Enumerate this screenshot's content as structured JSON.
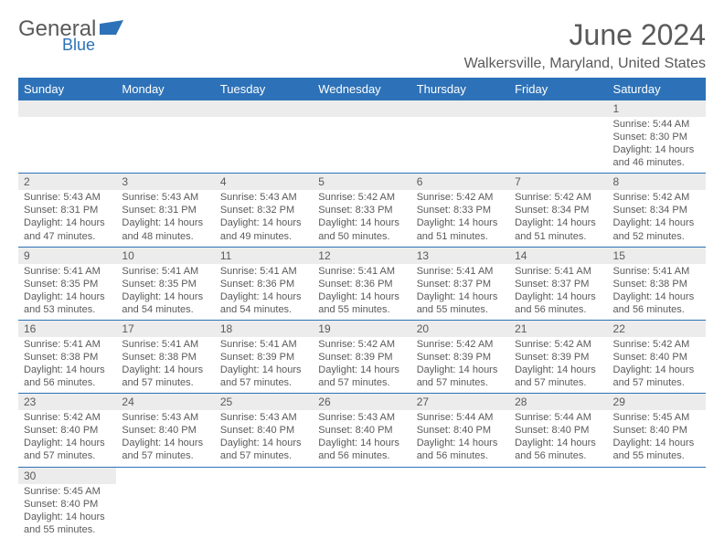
{
  "brand": {
    "textA": "General",
    "textB": "Blue",
    "logo_color": "#2d72b8",
    "text_color": "#5a5a5a"
  },
  "title": {
    "month": "June 2024",
    "location": "Walkersville, Maryland, United States"
  },
  "colors": {
    "header_bg": "#2d72b8",
    "row_stripe": "#ececec",
    "rule": "#2d72b8",
    "text": "#5a5a5a"
  },
  "daysOfWeek": [
    "Sunday",
    "Monday",
    "Tuesday",
    "Wednesday",
    "Thursday",
    "Friday",
    "Saturday"
  ],
  "weeks": [
    [
      {
        "n": "",
        "lines": []
      },
      {
        "n": "",
        "lines": []
      },
      {
        "n": "",
        "lines": []
      },
      {
        "n": "",
        "lines": []
      },
      {
        "n": "",
        "lines": []
      },
      {
        "n": "",
        "lines": []
      },
      {
        "n": "1",
        "lines": [
          "Sunrise: 5:44 AM",
          "Sunset: 8:30 PM",
          "Daylight: 14 hours",
          "and 46 minutes."
        ]
      }
    ],
    [
      {
        "n": "2",
        "lines": [
          "Sunrise: 5:43 AM",
          "Sunset: 8:31 PM",
          "Daylight: 14 hours",
          "and 47 minutes."
        ]
      },
      {
        "n": "3",
        "lines": [
          "Sunrise: 5:43 AM",
          "Sunset: 8:31 PM",
          "Daylight: 14 hours",
          "and 48 minutes."
        ]
      },
      {
        "n": "4",
        "lines": [
          "Sunrise: 5:43 AM",
          "Sunset: 8:32 PM",
          "Daylight: 14 hours",
          "and 49 minutes."
        ]
      },
      {
        "n": "5",
        "lines": [
          "Sunrise: 5:42 AM",
          "Sunset: 8:33 PM",
          "Daylight: 14 hours",
          "and 50 minutes."
        ]
      },
      {
        "n": "6",
        "lines": [
          "Sunrise: 5:42 AM",
          "Sunset: 8:33 PM",
          "Daylight: 14 hours",
          "and 51 minutes."
        ]
      },
      {
        "n": "7",
        "lines": [
          "Sunrise: 5:42 AM",
          "Sunset: 8:34 PM",
          "Daylight: 14 hours",
          "and 51 minutes."
        ]
      },
      {
        "n": "8",
        "lines": [
          "Sunrise: 5:42 AM",
          "Sunset: 8:34 PM",
          "Daylight: 14 hours",
          "and 52 minutes."
        ]
      }
    ],
    [
      {
        "n": "9",
        "lines": [
          "Sunrise: 5:41 AM",
          "Sunset: 8:35 PM",
          "Daylight: 14 hours",
          "and 53 minutes."
        ]
      },
      {
        "n": "10",
        "lines": [
          "Sunrise: 5:41 AM",
          "Sunset: 8:35 PM",
          "Daylight: 14 hours",
          "and 54 minutes."
        ]
      },
      {
        "n": "11",
        "lines": [
          "Sunrise: 5:41 AM",
          "Sunset: 8:36 PM",
          "Daylight: 14 hours",
          "and 54 minutes."
        ]
      },
      {
        "n": "12",
        "lines": [
          "Sunrise: 5:41 AM",
          "Sunset: 8:36 PM",
          "Daylight: 14 hours",
          "and 55 minutes."
        ]
      },
      {
        "n": "13",
        "lines": [
          "Sunrise: 5:41 AM",
          "Sunset: 8:37 PM",
          "Daylight: 14 hours",
          "and 55 minutes."
        ]
      },
      {
        "n": "14",
        "lines": [
          "Sunrise: 5:41 AM",
          "Sunset: 8:37 PM",
          "Daylight: 14 hours",
          "and 56 minutes."
        ]
      },
      {
        "n": "15",
        "lines": [
          "Sunrise: 5:41 AM",
          "Sunset: 8:38 PM",
          "Daylight: 14 hours",
          "and 56 minutes."
        ]
      }
    ],
    [
      {
        "n": "16",
        "lines": [
          "Sunrise: 5:41 AM",
          "Sunset: 8:38 PM",
          "Daylight: 14 hours",
          "and 56 minutes."
        ]
      },
      {
        "n": "17",
        "lines": [
          "Sunrise: 5:41 AM",
          "Sunset: 8:38 PM",
          "Daylight: 14 hours",
          "and 57 minutes."
        ]
      },
      {
        "n": "18",
        "lines": [
          "Sunrise: 5:41 AM",
          "Sunset: 8:39 PM",
          "Daylight: 14 hours",
          "and 57 minutes."
        ]
      },
      {
        "n": "19",
        "lines": [
          "Sunrise: 5:42 AM",
          "Sunset: 8:39 PM",
          "Daylight: 14 hours",
          "and 57 minutes."
        ]
      },
      {
        "n": "20",
        "lines": [
          "Sunrise: 5:42 AM",
          "Sunset: 8:39 PM",
          "Daylight: 14 hours",
          "and 57 minutes."
        ]
      },
      {
        "n": "21",
        "lines": [
          "Sunrise: 5:42 AM",
          "Sunset: 8:39 PM",
          "Daylight: 14 hours",
          "and 57 minutes."
        ]
      },
      {
        "n": "22",
        "lines": [
          "Sunrise: 5:42 AM",
          "Sunset: 8:40 PM",
          "Daylight: 14 hours",
          "and 57 minutes."
        ]
      }
    ],
    [
      {
        "n": "23",
        "lines": [
          "Sunrise: 5:42 AM",
          "Sunset: 8:40 PM",
          "Daylight: 14 hours",
          "and 57 minutes."
        ]
      },
      {
        "n": "24",
        "lines": [
          "Sunrise: 5:43 AM",
          "Sunset: 8:40 PM",
          "Daylight: 14 hours",
          "and 57 minutes."
        ]
      },
      {
        "n": "25",
        "lines": [
          "Sunrise: 5:43 AM",
          "Sunset: 8:40 PM",
          "Daylight: 14 hours",
          "and 57 minutes."
        ]
      },
      {
        "n": "26",
        "lines": [
          "Sunrise: 5:43 AM",
          "Sunset: 8:40 PM",
          "Daylight: 14 hours",
          "and 56 minutes."
        ]
      },
      {
        "n": "27",
        "lines": [
          "Sunrise: 5:44 AM",
          "Sunset: 8:40 PM",
          "Daylight: 14 hours",
          "and 56 minutes."
        ]
      },
      {
        "n": "28",
        "lines": [
          "Sunrise: 5:44 AM",
          "Sunset: 8:40 PM",
          "Daylight: 14 hours",
          "and 56 minutes."
        ]
      },
      {
        "n": "29",
        "lines": [
          "Sunrise: 5:45 AM",
          "Sunset: 8:40 PM",
          "Daylight: 14 hours",
          "and 55 minutes."
        ]
      }
    ],
    [
      {
        "n": "30",
        "lines": [
          "Sunrise: 5:45 AM",
          "Sunset: 8:40 PM",
          "Daylight: 14 hours",
          "and 55 minutes."
        ]
      },
      {
        "n": "",
        "lines": []
      },
      {
        "n": "",
        "lines": []
      },
      {
        "n": "",
        "lines": []
      },
      {
        "n": "",
        "lines": []
      },
      {
        "n": "",
        "lines": []
      },
      {
        "n": "",
        "lines": []
      }
    ]
  ]
}
